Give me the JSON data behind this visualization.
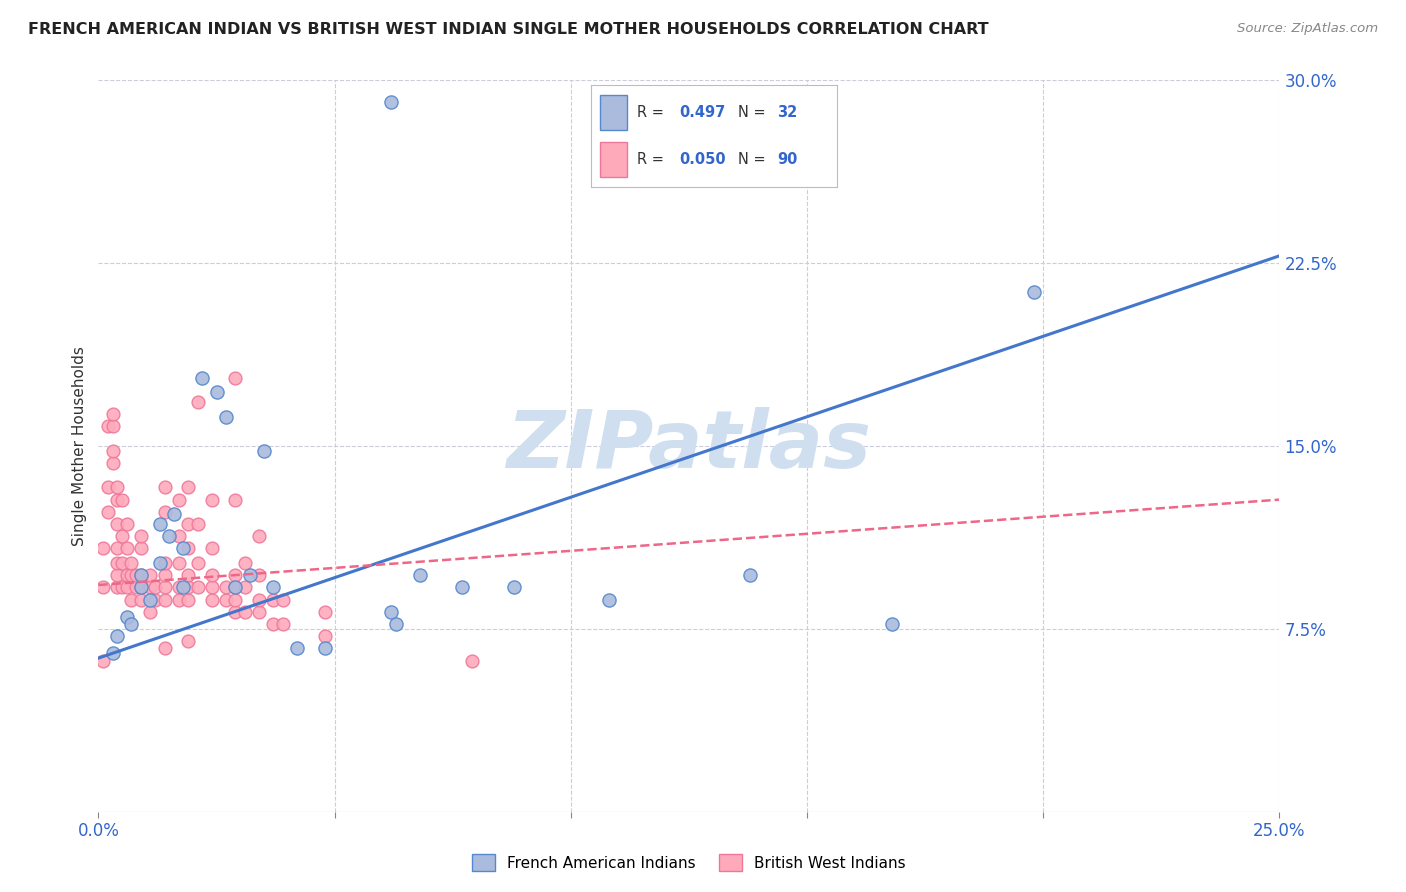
{
  "title": "FRENCH AMERICAN INDIAN VS BRITISH WEST INDIAN SINGLE MOTHER HOUSEHOLDS CORRELATION CHART",
  "source": "Source: ZipAtlas.com",
  "ylabel": "Single Mother Households",
  "ytick_labels": [
    "7.5%",
    "15.0%",
    "22.5%",
    "30.0%"
  ],
  "ytick_values": [
    0.075,
    0.15,
    0.225,
    0.3
  ],
  "xtick_values": [
    0.0,
    0.05,
    0.1,
    0.15,
    0.2,
    0.25
  ],
  "xlim": [
    0.0,
    0.25
  ],
  "ylim": [
    0.0,
    0.3
  ],
  "legend_r_blue": "0.497",
  "legend_n_blue": "32",
  "legend_r_pink": "0.050",
  "legend_n_pink": "90",
  "legend_label_blue": "French American Indians",
  "legend_label_pink": "British West Indians",
  "color_blue_fill": "#AABBDD",
  "color_blue_edge": "#5588CC",
  "color_pink_fill": "#FFAABB",
  "color_pink_edge": "#EE7799",
  "color_blue_line": "#4477CC",
  "color_pink_line": "#EE6688",
  "color_text_blue": "#3366CC",
  "color_text_dark": "#333333",
  "watermark": "ZIPatlas",
  "watermark_color": "#D0DFF0",
  "blue_points": [
    [
      0.003,
      0.065
    ],
    [
      0.004,
      0.072
    ],
    [
      0.006,
      0.08
    ],
    [
      0.007,
      0.077
    ],
    [
      0.009,
      0.092
    ],
    [
      0.009,
      0.097
    ],
    [
      0.011,
      0.087
    ],
    [
      0.013,
      0.102
    ],
    [
      0.013,
      0.118
    ],
    [
      0.015,
      0.113
    ],
    [
      0.016,
      0.122
    ],
    [
      0.018,
      0.092
    ],
    [
      0.018,
      0.108
    ],
    [
      0.022,
      0.178
    ],
    [
      0.025,
      0.172
    ],
    [
      0.027,
      0.162
    ],
    [
      0.029,
      0.092
    ],
    [
      0.032,
      0.097
    ],
    [
      0.035,
      0.148
    ],
    [
      0.037,
      0.092
    ],
    [
      0.042,
      0.067
    ],
    [
      0.048,
      0.067
    ],
    [
      0.062,
      0.082
    ],
    [
      0.063,
      0.077
    ],
    [
      0.068,
      0.097
    ],
    [
      0.077,
      0.092
    ],
    [
      0.088,
      0.092
    ],
    [
      0.108,
      0.087
    ],
    [
      0.138,
      0.097
    ],
    [
      0.168,
      0.077
    ],
    [
      0.198,
      0.213
    ],
    [
      0.062,
      0.291
    ]
  ],
  "pink_points": [
    [
      0.001,
      0.092
    ],
    [
      0.001,
      0.108
    ],
    [
      0.002,
      0.123
    ],
    [
      0.002,
      0.133
    ],
    [
      0.002,
      0.158
    ],
    [
      0.003,
      0.143
    ],
    [
      0.003,
      0.148
    ],
    [
      0.003,
      0.158
    ],
    [
      0.003,
      0.163
    ],
    [
      0.004,
      0.092
    ],
    [
      0.004,
      0.097
    ],
    [
      0.004,
      0.102
    ],
    [
      0.004,
      0.108
    ],
    [
      0.004,
      0.118
    ],
    [
      0.004,
      0.128
    ],
    [
      0.004,
      0.133
    ],
    [
      0.005,
      0.092
    ],
    [
      0.005,
      0.102
    ],
    [
      0.005,
      0.113
    ],
    [
      0.005,
      0.128
    ],
    [
      0.006,
      0.092
    ],
    [
      0.006,
      0.097
    ],
    [
      0.006,
      0.108
    ],
    [
      0.006,
      0.118
    ],
    [
      0.007,
      0.087
    ],
    [
      0.007,
      0.097
    ],
    [
      0.007,
      0.102
    ],
    [
      0.008,
      0.092
    ],
    [
      0.008,
      0.097
    ],
    [
      0.009,
      0.087
    ],
    [
      0.009,
      0.092
    ],
    [
      0.009,
      0.097
    ],
    [
      0.009,
      0.108
    ],
    [
      0.009,
      0.113
    ],
    [
      0.011,
      0.082
    ],
    [
      0.011,
      0.092
    ],
    [
      0.011,
      0.097
    ],
    [
      0.012,
      0.087
    ],
    [
      0.012,
      0.092
    ],
    [
      0.014,
      0.087
    ],
    [
      0.014,
      0.092
    ],
    [
      0.014,
      0.097
    ],
    [
      0.014,
      0.102
    ],
    [
      0.014,
      0.123
    ],
    [
      0.014,
      0.133
    ],
    [
      0.017,
      0.087
    ],
    [
      0.017,
      0.092
    ],
    [
      0.017,
      0.102
    ],
    [
      0.017,
      0.113
    ],
    [
      0.017,
      0.128
    ],
    [
      0.019,
      0.087
    ],
    [
      0.019,
      0.092
    ],
    [
      0.019,
      0.097
    ],
    [
      0.019,
      0.108
    ],
    [
      0.019,
      0.118
    ],
    [
      0.019,
      0.133
    ],
    [
      0.021,
      0.092
    ],
    [
      0.021,
      0.102
    ],
    [
      0.021,
      0.118
    ],
    [
      0.021,
      0.168
    ],
    [
      0.024,
      0.087
    ],
    [
      0.024,
      0.092
    ],
    [
      0.024,
      0.097
    ],
    [
      0.024,
      0.108
    ],
    [
      0.024,
      0.128
    ],
    [
      0.027,
      0.087
    ],
    [
      0.027,
      0.092
    ],
    [
      0.029,
      0.082
    ],
    [
      0.029,
      0.087
    ],
    [
      0.029,
      0.092
    ],
    [
      0.029,
      0.097
    ],
    [
      0.029,
      0.128
    ],
    [
      0.029,
      0.178
    ],
    [
      0.031,
      0.082
    ],
    [
      0.031,
      0.092
    ],
    [
      0.031,
      0.102
    ],
    [
      0.034,
      0.082
    ],
    [
      0.034,
      0.087
    ],
    [
      0.034,
      0.097
    ],
    [
      0.034,
      0.113
    ],
    [
      0.037,
      0.077
    ],
    [
      0.037,
      0.087
    ],
    [
      0.039,
      0.077
    ],
    [
      0.039,
      0.087
    ],
    [
      0.048,
      0.072
    ],
    [
      0.048,
      0.082
    ],
    [
      0.001,
      0.062
    ],
    [
      0.014,
      0.067
    ],
    [
      0.019,
      0.07
    ],
    [
      0.079,
      0.062
    ]
  ],
  "blue_line_x": [
    0.0,
    0.25
  ],
  "blue_line_y": [
    0.063,
    0.228
  ],
  "pink_line_x": [
    0.0,
    0.25
  ],
  "pink_line_y": [
    0.093,
    0.128
  ],
  "background_color": "#FFFFFF",
  "grid_color": "#CCCCDD"
}
